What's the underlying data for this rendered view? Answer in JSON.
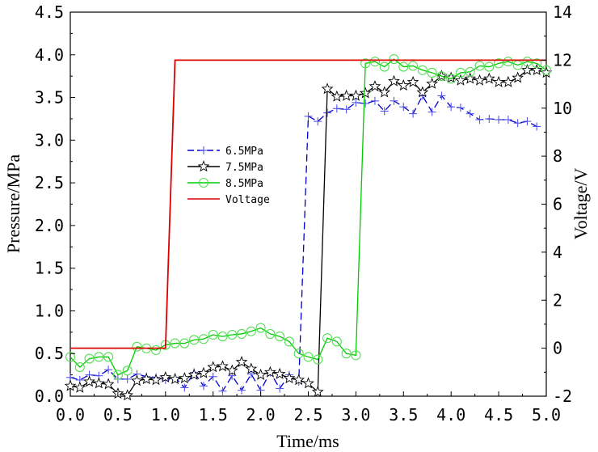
{
  "chart_data": {
    "type": "line",
    "title": "",
    "xlabel": "Time/ms",
    "ylabel": "Pressure/MPa",
    "y2label": "Voltage/V",
    "xlim": [
      0,
      5
    ],
    "ylim": [
      0,
      4.5
    ],
    "y2lim": [
      -2,
      14
    ],
    "xticks": [
      "0.0",
      "0.5",
      "1.0",
      "1.5",
      "2.0",
      "2.5",
      "3.0",
      "3.5",
      "4.0",
      "4.5",
      "5.0"
    ],
    "yticks": [
      "0.0",
      "0.5",
      "1.0",
      "1.5",
      "2.0",
      "2.5",
      "3.0",
      "3.5",
      "4.0",
      "4.5"
    ],
    "y2ticks": [
      "-2",
      "0",
      "2",
      "4",
      "6",
      "8",
      "10",
      "12",
      "14"
    ],
    "grid": false,
    "legend_position": "center-left",
    "series": [
      {
        "name": "6.5MPa",
        "axis": "left",
        "color": "#0000cc",
        "marker_color": "#5555ee",
        "marker": "plus",
        "x": [
          0.0,
          0.1,
          0.2,
          0.3,
          0.4,
          0.5,
          0.6,
          0.7,
          0.8,
          0.9,
          1.0,
          1.1,
          1.2,
          1.3,
          1.4,
          1.5,
          1.6,
          1.7,
          1.8,
          1.9,
          2.0,
          2.1,
          2.2,
          2.3,
          2.4,
          2.5,
          2.6,
          2.7,
          2.8,
          2.9,
          3.0,
          3.1,
          3.2,
          3.3,
          3.4,
          3.5,
          3.6,
          3.7,
          3.8,
          3.9,
          4.0,
          4.1,
          4.2,
          4.3,
          4.4,
          4.5,
          4.6,
          4.7,
          4.8,
          4.9
        ],
        "y": [
          0.22,
          0.19,
          0.25,
          0.24,
          0.31,
          0.2,
          0.2,
          0.26,
          0.23,
          0.22,
          0.19,
          0.22,
          0.1,
          0.28,
          0.12,
          0.23,
          0.06,
          0.24,
          0.07,
          0.26,
          0.07,
          0.28,
          0.09,
          0.25,
          0.17,
          3.28,
          3.22,
          3.32,
          3.37,
          3.36,
          3.44,
          3.43,
          3.46,
          3.34,
          3.46,
          3.39,
          3.31,
          3.52,
          3.33,
          3.52,
          3.39,
          3.38,
          3.31,
          3.24,
          3.25,
          3.24,
          3.24,
          3.2,
          3.22,
          3.16
        ]
      },
      {
        "name": "7.5MPa",
        "axis": "left",
        "color": "#000000",
        "marker_color": "#000000",
        "marker": "star",
        "x": [
          0.0,
          0.1,
          0.2,
          0.3,
          0.4,
          0.5,
          0.6,
          0.7,
          0.8,
          0.9,
          1.0,
          1.1,
          1.2,
          1.3,
          1.4,
          1.5,
          1.6,
          1.7,
          1.8,
          1.9,
          2.0,
          2.1,
          2.2,
          2.3,
          2.4,
          2.5,
          2.6,
          2.7,
          2.8,
          2.9,
          3.0,
          3.1,
          3.2,
          3.3,
          3.4,
          3.5,
          3.6,
          3.7,
          3.8,
          3.9,
          4.0,
          4.1,
          4.2,
          4.3,
          4.4,
          4.5,
          4.6,
          4.7,
          4.8,
          4.9,
          5.0
        ],
        "y": [
          0.12,
          0.1,
          0.17,
          0.15,
          0.14,
          0.03,
          0.01,
          0.18,
          0.2,
          0.19,
          0.22,
          0.2,
          0.21,
          0.25,
          0.27,
          0.34,
          0.35,
          0.3,
          0.4,
          0.32,
          0.25,
          0.28,
          0.26,
          0.21,
          0.19,
          0.15,
          0.05,
          3.6,
          3.51,
          3.52,
          3.52,
          3.55,
          3.63,
          3.56,
          3.69,
          3.64,
          3.68,
          3.56,
          3.66,
          3.75,
          3.73,
          3.7,
          3.72,
          3.7,
          3.72,
          3.68,
          3.68,
          3.73,
          3.82,
          3.82,
          3.79
        ]
      },
      {
        "name": "8.5MPa",
        "axis": "left",
        "color": "#00cc00",
        "marker_color": "#55dd55",
        "marker": "circle",
        "x": [
          0.0,
          0.1,
          0.2,
          0.3,
          0.4,
          0.5,
          0.6,
          0.7,
          0.8,
          0.9,
          1.0,
          1.1,
          1.2,
          1.3,
          1.4,
          1.5,
          1.6,
          1.7,
          1.8,
          1.9,
          2.0,
          2.1,
          2.2,
          2.3,
          2.4,
          2.5,
          2.6,
          2.7,
          2.8,
          2.9,
          3.0,
          3.1,
          3.2,
          3.3,
          3.4,
          3.5,
          3.6,
          3.7,
          3.8,
          3.9,
          4.0,
          4.1,
          4.2,
          4.3,
          4.4,
          4.5,
          4.6,
          4.7,
          4.8,
          4.9,
          5.0
        ],
        "y": [
          0.46,
          0.34,
          0.44,
          0.46,
          0.46,
          0.25,
          0.3,
          0.58,
          0.56,
          0.54,
          0.6,
          0.62,
          0.62,
          0.66,
          0.67,
          0.72,
          0.7,
          0.72,
          0.73,
          0.76,
          0.8,
          0.73,
          0.7,
          0.64,
          0.5,
          0.46,
          0.43,
          0.68,
          0.64,
          0.5,
          0.48,
          3.9,
          3.92,
          3.86,
          3.95,
          3.86,
          3.87,
          3.82,
          3.79,
          3.75,
          3.72,
          3.79,
          3.8,
          3.87,
          3.86,
          3.9,
          3.92,
          3.88,
          3.92,
          3.9,
          3.82
        ]
      },
      {
        "name": "Voltage",
        "axis": "right",
        "color": "#dd0000",
        "marker": "none",
        "x": [
          0.0,
          1.0,
          1.1,
          5.0
        ],
        "y": [
          0.0,
          0.0,
          12.0,
          12.0
        ]
      }
    ]
  }
}
